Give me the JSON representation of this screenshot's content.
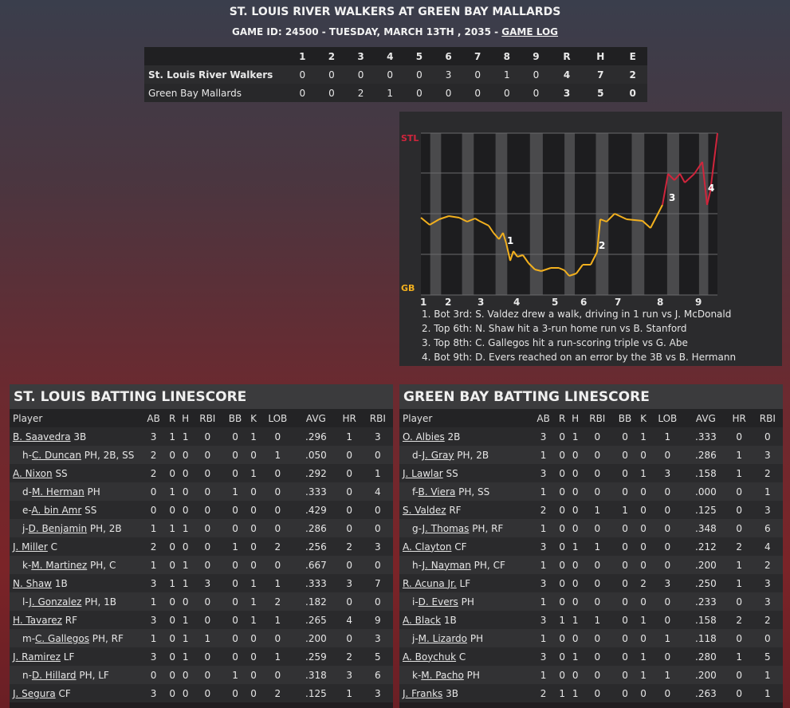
{
  "header": {
    "title": "ST. LOUIS RIVER WALKERS AT GREEN BAY MALLARDS",
    "subtitle": "GAME ID: 24500 - TUESDAY, MARCH 13TH , 2035 - ",
    "game_log_link": "GAME LOG"
  },
  "linescore": {
    "innings": [
      "1",
      "2",
      "3",
      "4",
      "5",
      "6",
      "7",
      "8",
      "9"
    ],
    "totals_headers": [
      "R",
      "H",
      "E"
    ],
    "teams": [
      {
        "name": "St. Louis River Walkers",
        "scores": [
          "0",
          "0",
          "0",
          "0",
          "0",
          "3",
          "0",
          "1",
          "0"
        ],
        "totals": [
          "4",
          "7",
          "2"
        ]
      },
      {
        "name": "Green Bay Mallards",
        "scores": [
          "0",
          "0",
          "2",
          "1",
          "0",
          "0",
          "0",
          "0",
          "0"
        ],
        "totals": [
          "3",
          "5",
          "0"
        ]
      }
    ]
  },
  "win_probability": {
    "top_label": "STL",
    "bottom_label": "GB",
    "colors": {
      "stl": "#d0253c",
      "gb": "#f2b01e"
    },
    "inning_labels": [
      "1",
      "2",
      "3",
      "4",
      "5",
      "6",
      "7",
      "8",
      "9"
    ],
    "markers": [
      "1",
      "2",
      "3",
      "4"
    ],
    "notes": [
      "1. Bot 3rd: S. Valdez drew a walk, driving in 1 run vs J. McDonald",
      "2. Top 6th: N. Shaw hit a 3-run home run vs B. Stanford",
      "3. Top 8th: C. Gallegos hit a run-scoring triple vs G. Abe",
      "4. Bot 9th: D. Evers reached on an error by the 3B vs B. Hermann"
    ]
  },
  "batting_headers": [
    "Player",
    "AB",
    "R",
    "H",
    "RBI",
    "BB",
    "K",
    "LOB",
    "AVG",
    "HR",
    "RBI"
  ],
  "stl_batting": {
    "title": "ST. LOUIS BATTING LINESCORE",
    "rows": [
      {
        "prefix": "",
        "name": "B. Saavedra",
        "pos": " 3B",
        "stats": [
          "3",
          "1",
          "1",
          "0",
          "0",
          "1",
          "0",
          ".296",
          "1",
          "3"
        ]
      },
      {
        "prefix": "h-",
        "name": "C. Duncan",
        "pos": " PH, 2B, SS",
        "stats": [
          "2",
          "0",
          "0",
          "0",
          "0",
          "0",
          "1",
          ".050",
          "0",
          "0"
        ]
      },
      {
        "prefix": "",
        "name": "A. Nixon",
        "pos": " SS",
        "stats": [
          "2",
          "0",
          "0",
          "0",
          "0",
          "1",
          "0",
          ".292",
          "0",
          "1"
        ]
      },
      {
        "prefix": "d-",
        "name": "M. Herman",
        "pos": " PH",
        "stats": [
          "0",
          "1",
          "0",
          "0",
          "1",
          "0",
          "0",
          ".333",
          "0",
          "4"
        ]
      },
      {
        "prefix": "e-",
        "name": "A. bin Amr",
        "pos": " SS",
        "stats": [
          "0",
          "0",
          "0",
          "0",
          "0",
          "0",
          "0",
          ".429",
          "0",
          "0"
        ]
      },
      {
        "prefix": "j-",
        "name": "D. Benjamin",
        "pos": " PH, 2B",
        "stats": [
          "1",
          "1",
          "1",
          "0",
          "0",
          "0",
          "0",
          ".286",
          "0",
          "0"
        ]
      },
      {
        "prefix": "",
        "name": "J. Miller",
        "pos": " C",
        "stats": [
          "2",
          "0",
          "0",
          "0",
          "1",
          "0",
          "2",
          ".256",
          "2",
          "3"
        ]
      },
      {
        "prefix": "k-",
        "name": "M. Martinez",
        "pos": " PH, C",
        "stats": [
          "1",
          "0",
          "1",
          "0",
          "0",
          "0",
          "0",
          ".667",
          "0",
          "0"
        ]
      },
      {
        "prefix": "",
        "name": "N. Shaw",
        "pos": " 1B",
        "stats": [
          "3",
          "1",
          "1",
          "3",
          "0",
          "1",
          "1",
          ".333",
          "3",
          "7"
        ]
      },
      {
        "prefix": "l-",
        "name": "J. Gonzalez",
        "pos": " PH, 1B",
        "stats": [
          "1",
          "0",
          "0",
          "0",
          "0",
          "1",
          "2",
          ".182",
          "0",
          "0"
        ]
      },
      {
        "prefix": "",
        "name": "H. Tavarez",
        "pos": " RF",
        "stats": [
          "3",
          "0",
          "1",
          "0",
          "0",
          "1",
          "1",
          ".265",
          "4",
          "9"
        ]
      },
      {
        "prefix": "m-",
        "name": "C. Gallegos",
        "pos": " PH, RF",
        "stats": [
          "1",
          "0",
          "1",
          "1",
          "0",
          "0",
          "0",
          ".200",
          "0",
          "3"
        ]
      },
      {
        "prefix": "",
        "name": "J. Ramirez",
        "pos": " LF",
        "stats": [
          "3",
          "0",
          "1",
          "0",
          "0",
          "0",
          "1",
          ".259",
          "2",
          "5"
        ]
      },
      {
        "prefix": "n-",
        "name": "D. Hillard",
        "pos": " PH, LF",
        "stats": [
          "0",
          "0",
          "0",
          "0",
          "1",
          "0",
          "0",
          ".318",
          "3",
          "6"
        ]
      },
      {
        "prefix": "",
        "name": "J. Segura",
        "pos": " CF",
        "stats": [
          "3",
          "0",
          "0",
          "0",
          "0",
          "0",
          "2",
          ".125",
          "1",
          "3"
        ]
      }
    ]
  },
  "gb_batting": {
    "title": "GREEN BAY BATTING LINESCORE",
    "rows": [
      {
        "prefix": "",
        "name": "O. Albies",
        "pos": " 2B",
        "stats": [
          "3",
          "0",
          "1",
          "0",
          "0",
          "1",
          "1",
          ".333",
          "0",
          "0"
        ]
      },
      {
        "prefix": "d-",
        "name": "J. Gray",
        "pos": " PH, 2B",
        "stats": [
          "1",
          "0",
          "0",
          "0",
          "0",
          "0",
          "0",
          ".286",
          "1",
          "3"
        ]
      },
      {
        "prefix": "",
        "name": "J. Lawlar",
        "pos": " SS",
        "stats": [
          "3",
          "0",
          "0",
          "0",
          "0",
          "1",
          "3",
          ".158",
          "1",
          "2"
        ]
      },
      {
        "prefix": "f-",
        "name": "B. Viera",
        "pos": " PH, SS",
        "stats": [
          "1",
          "0",
          "0",
          "0",
          "0",
          "0",
          "0",
          ".000",
          "0",
          "1"
        ]
      },
      {
        "prefix": "",
        "name": "S. Valdez",
        "pos": " RF",
        "stats": [
          "2",
          "0",
          "0",
          "1",
          "1",
          "0",
          "0",
          ".125",
          "0",
          "3"
        ]
      },
      {
        "prefix": "g-",
        "name": "J. Thomas",
        "pos": " PH, RF",
        "stats": [
          "1",
          "0",
          "0",
          "0",
          "0",
          "0",
          "0",
          ".348",
          "0",
          "6"
        ]
      },
      {
        "prefix": "",
        "name": "A. Clayton",
        "pos": " CF",
        "stats": [
          "3",
          "0",
          "1",
          "1",
          "0",
          "0",
          "0",
          ".212",
          "2",
          "4"
        ]
      },
      {
        "prefix": "h-",
        "name": "J. Nayman",
        "pos": " PH, CF",
        "stats": [
          "1",
          "0",
          "0",
          "0",
          "0",
          "0",
          "0",
          ".200",
          "1",
          "2"
        ]
      },
      {
        "prefix": "",
        "name": "R. Acuna Jr.",
        "pos": " LF",
        "stats": [
          "3",
          "0",
          "0",
          "0",
          "0",
          "2",
          "3",
          ".250",
          "1",
          "3"
        ]
      },
      {
        "prefix": "i-",
        "name": "D. Evers",
        "pos": " PH",
        "stats": [
          "1",
          "0",
          "0",
          "0",
          "0",
          "0",
          "0",
          ".233",
          "0",
          "3"
        ]
      },
      {
        "prefix": "",
        "name": "A. Black",
        "pos": " 1B",
        "stats": [
          "3",
          "1",
          "1",
          "1",
          "0",
          "1",
          "0",
          ".158",
          "2",
          "2"
        ]
      },
      {
        "prefix": "j-",
        "name": "M. Lizardo",
        "pos": " PH",
        "stats": [
          "1",
          "0",
          "0",
          "0",
          "0",
          "0",
          "1",
          ".118",
          "0",
          "0"
        ]
      },
      {
        "prefix": "",
        "name": "A. Boychuk",
        "pos": " C",
        "stats": [
          "3",
          "0",
          "1",
          "0",
          "0",
          "1",
          "0",
          ".280",
          "1",
          "5"
        ]
      },
      {
        "prefix": "k-",
        "name": "M. Pacho",
        "pos": " PH",
        "stats": [
          "1",
          "0",
          "0",
          "0",
          "0",
          "1",
          "1",
          ".200",
          "0",
          "1"
        ]
      },
      {
        "prefix": "",
        "name": "J. Franks",
        "pos": " 3B",
        "stats": [
          "2",
          "1",
          "1",
          "0",
          "0",
          "0",
          "0",
          ".263",
          "0",
          "1"
        ]
      }
    ]
  }
}
